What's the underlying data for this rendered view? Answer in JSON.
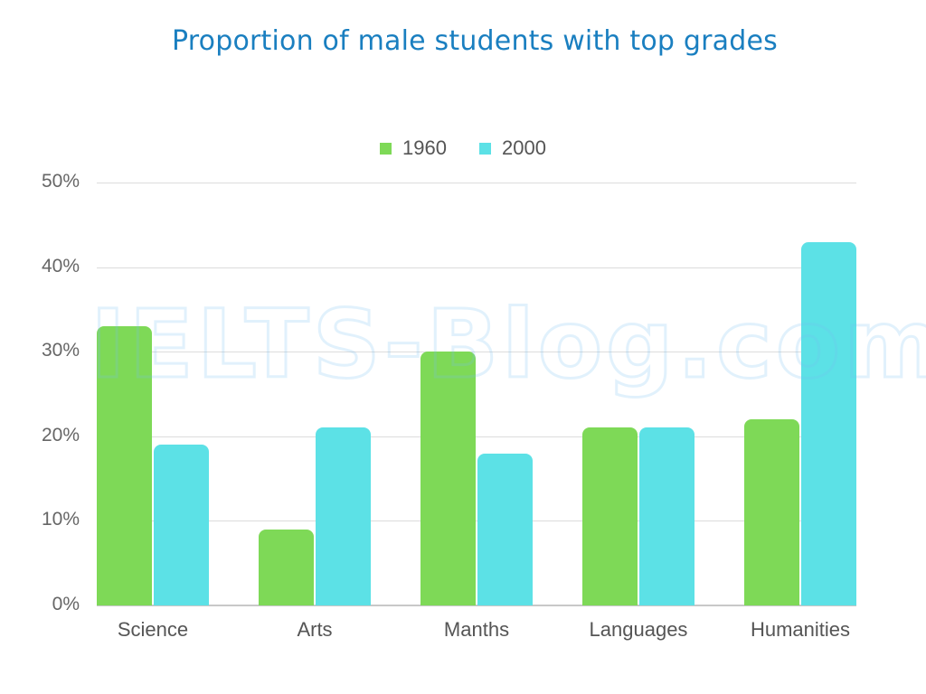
{
  "chart_data": {
    "type": "bar",
    "title": "Proportion of male students with top grades",
    "categories": [
      "Science",
      "Arts",
      "Manths",
      "Languages",
      "Humanities"
    ],
    "series": [
      {
        "name": "1960",
        "color": "#7ed957",
        "values": [
          33,
          9,
          30,
          21,
          22
        ]
      },
      {
        "name": "2000",
        "color": "#5ce1e6",
        "values": [
          19,
          21,
          18,
          21,
          43
        ]
      }
    ],
    "xlabel": "",
    "ylabel": "",
    "ylim": [
      0,
      50
    ],
    "yticks": [
      "0%",
      "10%",
      "20%",
      "30%",
      "40%",
      "50%"
    ],
    "grid": true,
    "legend_position": "top"
  },
  "title": "Proportion of male students with top grades",
  "legend": [
    {
      "label": "1960",
      "color": "#7ed957"
    },
    {
      "label": "2000",
      "color": "#5ce1e6"
    }
  ],
  "watermark": "IELTS-Blog.com"
}
